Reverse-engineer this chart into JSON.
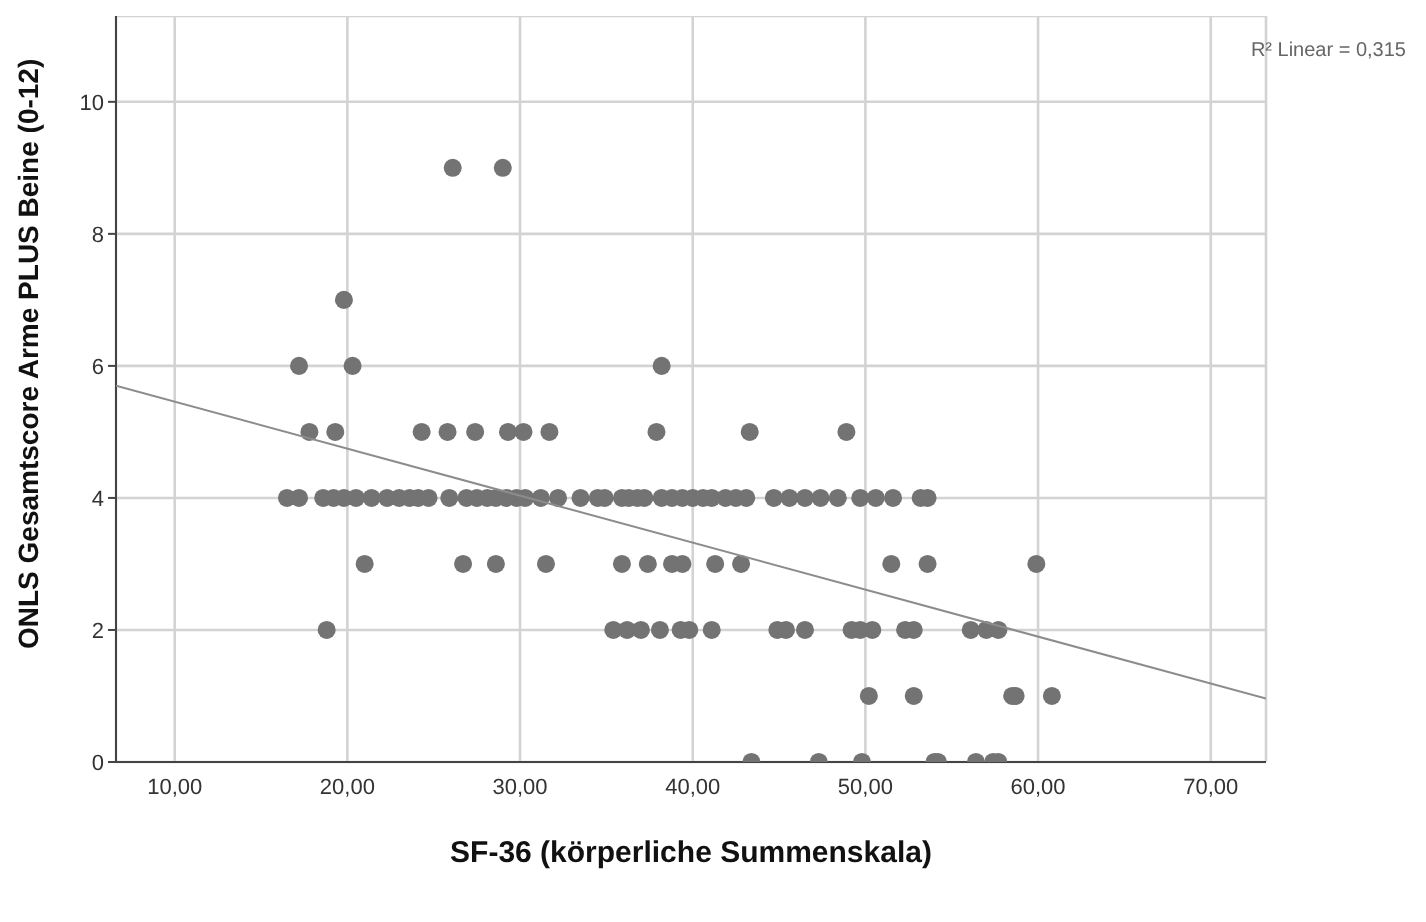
{
  "chart_data": {
    "type": "scatter",
    "xlabel": "SF-36 (körperliche Summenskala)",
    "ylabel": "ONLS Gesamtscore  Arme PLUS Beine (0-12)",
    "annotations": [
      "R² Linear = 0,315"
    ],
    "xlim": [
      6.6,
      73.2
    ],
    "xticks": [
      {
        "value": 10,
        "label": "10,00"
      },
      {
        "value": 20,
        "label": "20,00"
      },
      {
        "value": 30,
        "label": "30,00"
      },
      {
        "value": 40,
        "label": "40,00"
      },
      {
        "value": 50,
        "label": "50,00"
      },
      {
        "value": 60,
        "label": "60,00"
      },
      {
        "value": 70,
        "label": "70,00"
      }
    ],
    "ylim": [
      0,
      11.3
    ],
    "yticks": [
      0,
      2,
      4,
      6,
      8,
      10
    ],
    "grid": true,
    "series": [
      {
        "color": "#737373",
        "marker": "circle",
        "x": [
          26.1,
          29.0,
          19.8,
          17.2,
          20.3,
          38.2,
          17.8,
          19.3,
          24.3,
          25.8,
          27.4,
          29.3,
          30.2,
          31.7,
          37.9,
          43.3,
          48.9,
          16.5,
          17.2,
          18.6,
          19.2,
          19.8,
          20.5,
          21.4,
          22.3,
          23.0,
          23.6,
          24.1,
          24.7,
          25.9,
          26.9,
          27.5,
          28.1,
          28.6,
          29.2,
          29.8,
          30.3,
          31.2,
          32.2,
          33.5,
          34.5,
          34.9,
          35.9,
          36.3,
          36.8,
          37.2,
          38.2,
          38.8,
          39.4,
          40.0,
          40.6,
          41.1,
          41.9,
          42.5,
          43.1,
          44.7,
          45.6,
          46.5,
          47.4,
          48.4,
          49.7,
          50.6,
          51.6,
          53.2,
          53.6,
          21.0,
          26.7,
          28.6,
          31.5,
          35.9,
          37.4,
          38.8,
          39.4,
          41.3,
          42.8,
          51.5,
          53.6,
          59.9,
          18.8,
          35.4,
          36.2,
          37.0,
          38.1,
          39.3,
          39.8,
          41.1,
          44.9,
          45.4,
          46.5,
          49.2,
          49.7,
          50.4,
          52.3,
          52.8,
          56.1,
          57.0,
          57.7,
          50.2,
          52.8,
          58.5,
          58.7,
          60.8,
          43.4,
          47.3,
          49.8,
          54.0,
          54.2,
          56.4,
          57.4,
          57.7
        ],
        "values": [
          9,
          9,
          7,
          6,
          6,
          6,
          5,
          5,
          5,
          5,
          5,
          5,
          5,
          5,
          5,
          5,
          5,
          4,
          4,
          4,
          4,
          4,
          4,
          4,
          4,
          4,
          4,
          4,
          4,
          4,
          4,
          4,
          4,
          4,
          4,
          4,
          4,
          4,
          4,
          4,
          4,
          4,
          4,
          4,
          4,
          4,
          4,
          4,
          4,
          4,
          4,
          4,
          4,
          4,
          4,
          4,
          4,
          4,
          4,
          4,
          4,
          4,
          4,
          4,
          4,
          3,
          3,
          3,
          3,
          3,
          3,
          3,
          3,
          3,
          3,
          3,
          3,
          3,
          2,
          2,
          2,
          2,
          2,
          2,
          2,
          2,
          2,
          2,
          2,
          2,
          2,
          2,
          2,
          2,
          2,
          2,
          2,
          1,
          1,
          1,
          1,
          1,
          0,
          0,
          0,
          0,
          0,
          0,
          0,
          0
        ]
      },
      {
        "type": "line",
        "color": "#8c8c8c",
        "marker": "none",
        "x": [
          6.6,
          73.2
        ],
        "values": [
          5.7,
          0.96
        ]
      }
    ]
  }
}
